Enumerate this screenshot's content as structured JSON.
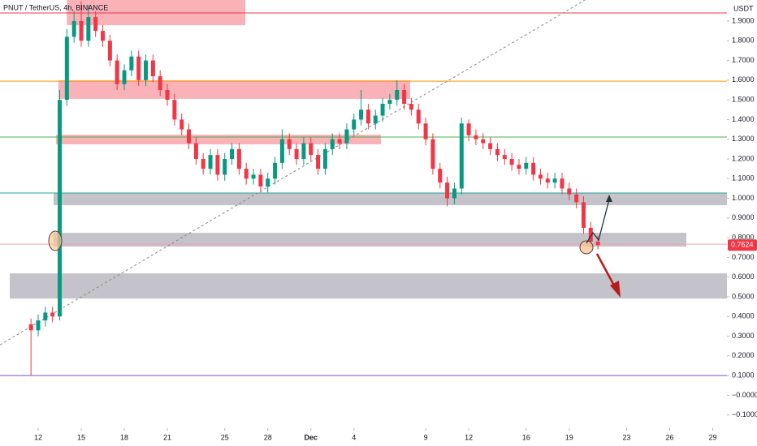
{
  "chart_data": {
    "type": "candlestick",
    "title": "PNUT / TetherUS, 4h, BINANCE",
    "y_axis_label": "USDT",
    "up_color": "#089981",
    "down_color": "#f23645",
    "xlim": [
      8.34,
      58.99
    ],
    "ylim": [
      -0.167,
      2.007
    ],
    "xticks": [
      {
        "value": 11,
        "label": "12"
      },
      {
        "value": 14,
        "label": "15"
      },
      {
        "value": 17,
        "label": "18"
      },
      {
        "value": 20,
        "label": "21"
      },
      {
        "value": 24,
        "label": "25"
      },
      {
        "value": 27,
        "label": "28"
      },
      {
        "value": 30,
        "label": "Dec"
      },
      {
        "value": 33,
        "label": "4"
      },
      {
        "value": 38,
        "label": "9"
      },
      {
        "value": 41,
        "label": "12"
      },
      {
        "value": 45,
        "label": "16"
      },
      {
        "value": 48,
        "label": "19"
      },
      {
        "value": 52,
        "label": "23"
      },
      {
        "value": 55,
        "label": "26"
      },
      {
        "value": 58,
        "label": "29"
      }
    ],
    "yticks": [
      {
        "value": 1.9,
        "label": "1.9000"
      },
      {
        "value": 1.8,
        "label": "1.8000"
      },
      {
        "value": 1.7,
        "label": "1.7000"
      },
      {
        "value": 1.6,
        "label": "1.6000"
      },
      {
        "value": 1.5,
        "label": "1.5000"
      },
      {
        "value": 1.4,
        "label": "1.4000"
      },
      {
        "value": 1.3,
        "label": "1.3000"
      },
      {
        "value": 1.2,
        "label": "1.2000"
      },
      {
        "value": 1.1,
        "label": "1.1000"
      },
      {
        "value": 1.0,
        "label": "1.0000"
      },
      {
        "value": 0.9,
        "label": "0.9000"
      },
      {
        "value": 0.8,
        "label": "0.8000"
      },
      {
        "value": 0.7,
        "label": "0.7000"
      },
      {
        "value": 0.6,
        "label": "0.6000"
      },
      {
        "value": 0.5,
        "label": "0.5000"
      },
      {
        "value": 0.4,
        "label": "0.4000"
      },
      {
        "value": 0.3,
        "label": "0.3000"
      },
      {
        "value": 0.2,
        "label": "0.2000"
      },
      {
        "value": 0.1,
        "label": "0.1000"
      },
      {
        "value": 0,
        "label": "−0.0000"
      },
      {
        "value": -0.1,
        "label": "−0.1000"
      }
    ],
    "price_badge": {
      "value": 0.7624,
      "label": "0.7624",
      "color": "#f23645"
    },
    "x": [
      10.5,
      11,
      11.5,
      12,
      12.5,
      13,
      13.5,
      14,
      14.5,
      15,
      15.5,
      16,
      16.5,
      17,
      17.5,
      18,
      18.5,
      19,
      19.5,
      20,
      20.5,
      21,
      21.5,
      22,
      22.5,
      23,
      23.5,
      24,
      24.5,
      25,
      25.5,
      26,
      26.5,
      27,
      27.5,
      28,
      28.5,
      29,
      29.5,
      30,
      30.5,
      31,
      31.5,
      32,
      32.5,
      33,
      33.5,
      34,
      34.5,
      35,
      35.5,
      36,
      36.5,
      37,
      37.5,
      38,
      38.5,
      39,
      39.5,
      40,
      40.5,
      41,
      41.5,
      42,
      42.5,
      43,
      43.5,
      44,
      44.5,
      45,
      45.5,
      46,
      46.5,
      47,
      47.5,
      48,
      48.5,
      49,
      49.5,
      50
    ],
    "open": [
      0.36,
      0.33,
      0.38,
      0.42,
      0.4,
      1.5,
      1.82,
      1.9,
      1.8,
      1.92,
      1.85,
      1.8,
      1.7,
      1.58,
      1.65,
      1.72,
      1.6,
      1.7,
      1.62,
      1.55,
      1.5,
      1.4,
      1.35,
      1.28,
      1.2,
      1.15,
      1.22,
      1.12,
      1.2,
      1.25,
      1.15,
      1.1,
      1.12,
      1.06,
      1.1,
      1.18,
      1.3,
      1.25,
      1.2,
      1.28,
      1.22,
      1.15,
      1.25,
      1.3,
      1.28,
      1.35,
      1.4,
      1.45,
      1.38,
      1.42,
      1.48,
      1.5,
      1.55,
      1.48,
      1.45,
      1.38,
      1.3,
      1.15,
      1.08,
      1.0,
      1.05,
      1.38,
      1.32,
      1.3,
      1.28,
      1.25,
      1.22,
      1.2,
      1.17,
      1.15,
      1.18,
      1.12,
      1.1,
      1.08,
      1.1,
      1.05,
      1.02,
      0.98,
      0.85,
      0.78
    ],
    "high": [
      0.39,
      0.41,
      0.45,
      0.45,
      1.55,
      1.86,
      1.95,
      2.0,
      1.98,
      1.95,
      1.88,
      1.83,
      1.73,
      1.68,
      1.75,
      1.75,
      1.73,
      1.73,
      1.65,
      1.58,
      1.53,
      1.43,
      1.38,
      1.31,
      1.23,
      1.25,
      1.25,
      1.23,
      1.28,
      1.28,
      1.18,
      1.15,
      1.15,
      1.13,
      1.21,
      1.35,
      1.33,
      1.28,
      1.31,
      1.31,
      1.25,
      1.28,
      1.33,
      1.33,
      1.38,
      1.43,
      1.55,
      1.48,
      1.45,
      1.51,
      1.53,
      1.6,
      1.58,
      1.51,
      1.48,
      1.41,
      1.33,
      1.18,
      1.11,
      1.08,
      1.41,
      1.4,
      1.35,
      1.33,
      1.31,
      1.28,
      1.25,
      1.23,
      1.2,
      1.21,
      1.21,
      1.15,
      1.13,
      1.13,
      1.13,
      1.08,
      1.05,
      1.01,
      0.88,
      0.81
    ],
    "low": [
      0.1,
      0.3,
      0.35,
      0.37,
      0.38,
      1.47,
      1.79,
      1.77,
      1.77,
      1.82,
      1.77,
      1.67,
      1.55,
      1.55,
      1.62,
      1.57,
      1.57,
      1.59,
      1.52,
      1.47,
      1.37,
      1.32,
      1.25,
      1.17,
      1.12,
      1.12,
      1.09,
      1.09,
      1.17,
      1.12,
      1.07,
      1.07,
      1.03,
      1.03,
      1.07,
      1.15,
      1.22,
      1.17,
      1.17,
      1.19,
      1.12,
      1.12,
      1.22,
      1.25,
      1.25,
      1.32,
      1.37,
      1.35,
      1.35,
      1.39,
      1.45,
      1.47,
      1.45,
      1.42,
      1.35,
      1.27,
      1.12,
      1.05,
      0.96,
      0.97,
      1.02,
      1.29,
      1.27,
      1.25,
      1.22,
      1.19,
      1.17,
      1.14,
      1.12,
      1.12,
      1.09,
      1.07,
      1.05,
      1.05,
      1.02,
      0.99,
      0.95,
      0.82,
      0.75,
      0.74
    ],
    "close": [
      0.33,
      0.38,
      0.42,
      0.4,
      1.5,
      1.82,
      1.9,
      1.8,
      1.92,
      1.85,
      1.8,
      1.7,
      1.58,
      1.65,
      1.72,
      1.6,
      1.7,
      1.62,
      1.55,
      1.5,
      1.4,
      1.35,
      1.28,
      1.2,
      1.15,
      1.22,
      1.12,
      1.2,
      1.25,
      1.15,
      1.1,
      1.12,
      1.06,
      1.1,
      1.18,
      1.3,
      1.25,
      1.2,
      1.28,
      1.22,
      1.15,
      1.25,
      1.3,
      1.28,
      1.35,
      1.4,
      1.45,
      1.38,
      1.42,
      1.48,
      1.5,
      1.55,
      1.48,
      1.45,
      1.38,
      1.3,
      1.15,
      1.08,
      1.0,
      1.05,
      1.38,
      1.32,
      1.3,
      1.28,
      1.25,
      1.22,
      1.2,
      1.17,
      1.15,
      1.18,
      1.12,
      1.1,
      1.08,
      1.1,
      1.05,
      1.02,
      0.98,
      0.85,
      0.78,
      0.7624
    ],
    "levels": [
      {
        "value": 1.941,
        "color": "#f23645"
      },
      {
        "value": 1.595,
        "color": "#ff9800"
      },
      {
        "value": 1.311,
        "color": "#4caf50"
      },
      {
        "value": 1.027,
        "color": "#26a69a"
      },
      {
        "value": 0.767,
        "color": "#f7a1a8"
      },
      {
        "value": 0.1,
        "color": "#7e57c2"
      }
    ],
    "zones": [
      {
        "x": [
          13.0,
          25.43
        ],
        "y": [
          1.879,
          2.007
        ],
        "color": "#f7a5ab"
      },
      {
        "x": [
          12.41,
          36.92
        ],
        "y": [
          1.505,
          1.6
        ],
        "color": "#f7a5ab"
      },
      {
        "x": [
          12.24,
          34.88
        ],
        "y": [
          1.274,
          1.323
        ],
        "color": "#f7a5ab"
      },
      {
        "x": [
          12.07,
          58.99
        ],
        "y": [
          0.965,
          1.027
        ],
        "color": "#b8b8bf"
      },
      {
        "x": [
          12.07,
          56.16
        ],
        "y": [
          0.755,
          0.825
        ],
        "color": "#b8b8bf"
      },
      {
        "x": [
          9.02,
          58.99
        ],
        "y": [
          0.491,
          0.619
        ],
        "color": "#b8b8bf"
      }
    ],
    "trendline": {
      "x": [
        8.34,
        49.1
      ],
      "y": [
        0.256,
        2.007
      ]
    }
  }
}
